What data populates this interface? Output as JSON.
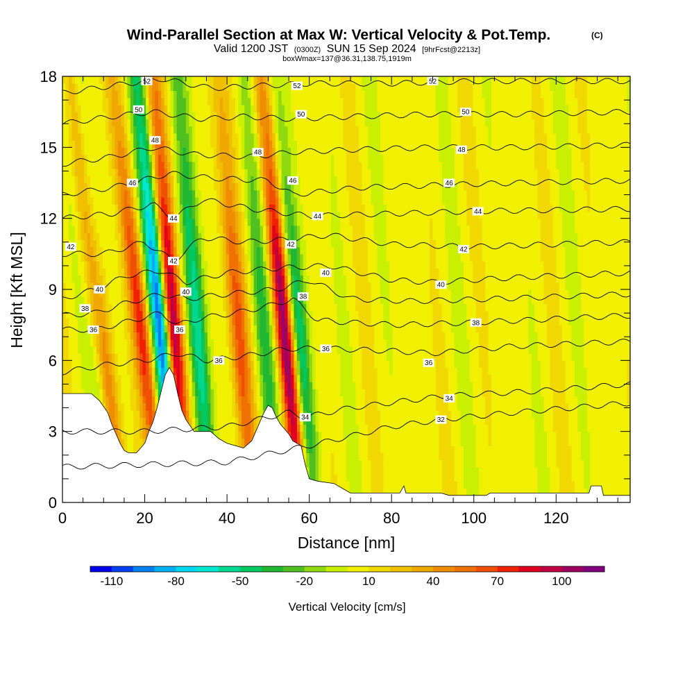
{
  "title": {
    "main": "Wind-Parallel Section at Max W: Vertical Velocity & Pot.Temp.",
    "copyright": "(C)",
    "subtitle_prefix": "Valid 1200 JST",
    "subtitle_utc": "(0300Z)",
    "subtitle_date": "SUN 15 Sep 2024",
    "subtitle_fcst": "[9hrFcst@2213z]",
    "box_info": "boxWmax=137@36.31,138.75,1919m"
  },
  "chart_data": {
    "type": "heatmap",
    "xlabel": "Distance [nm]",
    "ylabel": "Height [Kft MSL]",
    "xlim": [
      0,
      138
    ],
    "ylim": [
      0,
      18
    ],
    "xticks": [
      0,
      20,
      40,
      60,
      80,
      100,
      120
    ],
    "yticks": [
      0,
      3,
      6,
      9,
      12,
      15,
      18
    ],
    "colorbar": {
      "title": "Vertical Velocity [cm/s]",
      "tick_labels": [
        "-110",
        "-80",
        "-50",
        "-20",
        "10",
        "40",
        "70",
        "100"
      ],
      "tick_values": [
        -110,
        -80,
        -50,
        -20,
        10,
        40,
        70,
        100
      ],
      "levels": [
        -120,
        -110,
        -100,
        -90,
        -80,
        -70,
        -60,
        -50,
        -40,
        -30,
        -20,
        -10,
        0,
        10,
        20,
        30,
        40,
        50,
        60,
        70,
        80,
        90,
        100,
        110,
        120
      ],
      "colors": [
        "#0000f0",
        "#0040f0",
        "#0080f0",
        "#00b0f0",
        "#00d8f0",
        "#00e8d0",
        "#00d890",
        "#00c860",
        "#20b830",
        "#50c020",
        "#90d810",
        "#c8f000",
        "#f0f000",
        "#f0d800",
        "#f0c000",
        "#f0a800",
        "#f08c00",
        "#f07000",
        "#f05000",
        "#f02000",
        "#e00020",
        "#c00040",
        "#a00060",
        "#800080"
      ]
    },
    "background_w_range": [
      0,
      10
    ],
    "updraft_bands": [
      {
        "x_base": 14,
        "x_top": 2,
        "w_peak": 80
      },
      {
        "x_base": 24,
        "x_top": 12,
        "w_peak": 70
      },
      {
        "x_base": 30,
        "x_top": 22,
        "w_peak": 100
      },
      {
        "x_base": 46,
        "x_top": 38,
        "w_peak": 60
      },
      {
        "x_base": 58,
        "x_top": 48,
        "w_peak": 110
      }
    ],
    "downdraft_bands": [
      {
        "x_base": 12,
        "x_top": 4,
        "w_peak": -50
      },
      {
        "x_base": 28,
        "x_top": 18,
        "w_peak": -110
      },
      {
        "x_base": 36,
        "x_top": 28,
        "w_peak": -60
      },
      {
        "x_base": 52,
        "x_top": 44,
        "w_peak": -40
      },
      {
        "x_base": 61,
        "x_top": 52,
        "w_peak": -60
      }
    ],
    "terrain_kft": [
      [
        0,
        4.6
      ],
      [
        7,
        4.6
      ],
      [
        9,
        4.3
      ],
      [
        11,
        3.8
      ],
      [
        12,
        3.3
      ],
      [
        13,
        2.9
      ],
      [
        14,
        2.5
      ],
      [
        15,
        2.2
      ],
      [
        16,
        2.1
      ],
      [
        18,
        2.1
      ],
      [
        20,
        2.5
      ],
      [
        21,
        3.0
      ],
      [
        22,
        3.4
      ],
      [
        23,
        4.0
      ],
      [
        24,
        4.7
      ],
      [
        25,
        5.4
      ],
      [
        26,
        5.7
      ],
      [
        27,
        5.4
      ],
      [
        28,
        4.6
      ],
      [
        29,
        3.9
      ],
      [
        30,
        3.5
      ],
      [
        32,
        3.0
      ],
      [
        36,
        3.0
      ],
      [
        38,
        2.7
      ],
      [
        40,
        2.5
      ],
      [
        44,
        2.3
      ],
      [
        46,
        2.6
      ],
      [
        47,
        3.0
      ],
      [
        48,
        3.4
      ],
      [
        49,
        3.8
      ],
      [
        50,
        4.1
      ],
      [
        51,
        4.0
      ],
      [
        52,
        3.6
      ],
      [
        53,
        3.3
      ],
      [
        54,
        3.1
      ],
      [
        55,
        2.9
      ],
      [
        56,
        2.6
      ],
      [
        58,
        2.4
      ],
      [
        59,
        1.6
      ],
      [
        60,
        1.0
      ],
      [
        62,
        0.9
      ],
      [
        66,
        0.8
      ],
      [
        68,
        0.6
      ],
      [
        70,
        0.4
      ],
      [
        82,
        0.4
      ],
      [
        83,
        0.7
      ],
      [
        83.5,
        0.4
      ],
      [
        92,
        0.4
      ],
      [
        94,
        0.3
      ],
      [
        103,
        0.3
      ],
      [
        104,
        0.4
      ],
      [
        128,
        0.4
      ],
      [
        128.5,
        0.7
      ],
      [
        131,
        0.7
      ],
      [
        131.5,
        0.3
      ],
      [
        138,
        0.3
      ]
    ],
    "isentropes": [
      {
        "theta": 32,
        "label": "32",
        "pts": [
          [
            0,
            1.5
          ],
          [
            40,
            1.7
          ],
          [
            60,
            2.4
          ],
          [
            80,
            3.2
          ],
          [
            92,
            3.5
          ],
          [
            110,
            3.8
          ],
          [
            138,
            4.2
          ]
        ]
      },
      {
        "theta": 34,
        "label": "34",
        "pts": [
          [
            0,
            3.0
          ],
          [
            20,
            3.0
          ],
          [
            40,
            3.2
          ],
          [
            55,
            3.8
          ],
          [
            59,
            3.6
          ],
          [
            70,
            4.0
          ],
          [
            93,
            4.5
          ],
          [
            115,
            4.7
          ],
          [
            138,
            5.0
          ]
        ]
      },
      {
        "theta": 36,
        "label": "36",
        "pts": [
          [
            0,
            5.5
          ],
          [
            10,
            5.8
          ],
          [
            20,
            6.0
          ],
          [
            28,
            6.3
          ],
          [
            35,
            6.0
          ],
          [
            45,
            6.2
          ],
          [
            55,
            6.5
          ],
          [
            65,
            6.5
          ],
          [
            80,
            6.4
          ],
          [
            90,
            6.3
          ],
          [
            110,
            6.6
          ],
          [
            138,
            6.8
          ]
        ]
      },
      {
        "theta": 38,
        "label": "38",
        "pts": [
          [
            0,
            7.3
          ],
          [
            8,
            7.3
          ],
          [
            15,
            7.6
          ],
          [
            24,
            8.0
          ],
          [
            28,
            7.5
          ],
          [
            34,
            7.8
          ],
          [
            42,
            8.0
          ],
          [
            50,
            8.3
          ],
          [
            56,
            8.6
          ],
          [
            62,
            7.7
          ],
          [
            70,
            7.6
          ],
          [
            82,
            7.5
          ],
          [
            100,
            7.6
          ],
          [
            138,
            7.9
          ]
        ]
      },
      {
        "theta": 38.5,
        "label": "38",
        "pts": [
          [
            0,
            7.9
          ],
          [
            8,
            8.0
          ],
          [
            15,
            8.4
          ],
          [
            24,
            8.8
          ],
          [
            30,
            8.6
          ],
          [
            40,
            8.8
          ],
          [
            52,
            9.0
          ],
          [
            60,
            9.4
          ],
          [
            70,
            8.6
          ],
          [
            85,
            8.5
          ],
          [
            105,
            8.6
          ],
          [
            138,
            8.8
          ]
        ]
      },
      {
        "theta": 40,
        "label": "40",
        "pts": [
          [
            0,
            8.6
          ],
          [
            8,
            9.0
          ],
          [
            16,
            9.6
          ],
          [
            24,
            9.8
          ],
          [
            30,
            9.3
          ],
          [
            40,
            9.7
          ],
          [
            52,
            9.9
          ],
          [
            65,
            10.0
          ],
          [
            80,
            9.4
          ],
          [
            90,
            9.3
          ],
          [
            110,
            9.5
          ],
          [
            138,
            9.7
          ]
        ]
      },
      {
        "theta": 42,
        "label": "42",
        "pts": [
          [
            0,
            10.5
          ],
          [
            10,
            10.5
          ],
          [
            20,
            11.0
          ],
          [
            27,
            10.2
          ],
          [
            34,
            11.2
          ],
          [
            44,
            11.0
          ],
          [
            54,
            11.1
          ],
          [
            65,
            11.3
          ],
          [
            80,
            10.9
          ],
          [
            100,
            10.8
          ],
          [
            138,
            11.0
          ]
        ]
      },
      {
        "theta": 44,
        "label": "44",
        "pts": [
          [
            0,
            12.0
          ],
          [
            12,
            12.2
          ],
          [
            22,
            12.6
          ],
          [
            27,
            12.0
          ],
          [
            34,
            12.8
          ],
          [
            46,
            12.4
          ],
          [
            60,
            12.1
          ],
          [
            80,
            12.2
          ],
          [
            100,
            12.3
          ],
          [
            138,
            12.4
          ]
        ]
      },
      {
        "theta": 46,
        "label": "46",
        "pts": [
          [
            0,
            13.0
          ],
          [
            12,
            13.3
          ],
          [
            17,
            13.5
          ],
          [
            26,
            13.9
          ],
          [
            36,
            13.7
          ],
          [
            50,
            13.6
          ],
          [
            56,
            13.0
          ],
          [
            72,
            13.3
          ],
          [
            90,
            13.4
          ],
          [
            110,
            13.5
          ],
          [
            138,
            13.6
          ]
        ]
      },
      {
        "theta": 48,
        "label": "48",
        "pts": [
          [
            0,
            14.3
          ],
          [
            12,
            14.6
          ],
          [
            22,
            15.0
          ],
          [
            32,
            14.7
          ],
          [
            46,
            14.6
          ],
          [
            56,
            14.8
          ],
          [
            70,
            14.9
          ],
          [
            90,
            15.0
          ],
          [
            110,
            15.0
          ],
          [
            138,
            15.1
          ]
        ]
      },
      {
        "theta": 50,
        "label": "50",
        "pts": [
          [
            0,
            16.0
          ],
          [
            12,
            16.3
          ],
          [
            22,
            16.5
          ],
          [
            34,
            16.2
          ],
          [
            44,
            16.3
          ],
          [
            56,
            16.2
          ],
          [
            70,
            16.3
          ],
          [
            90,
            16.4
          ],
          [
            110,
            16.4
          ],
          [
            138,
            16.5
          ]
        ]
      },
      {
        "theta": 52,
        "label": "52",
        "pts": [
          [
            0,
            17.3
          ],
          [
            12,
            17.6
          ],
          [
            24,
            17.9
          ],
          [
            36,
            17.5
          ],
          [
            48,
            17.6
          ],
          [
            60,
            17.7
          ],
          [
            80,
            17.7
          ],
          [
            100,
            17.8
          ],
          [
            138,
            17.8
          ]
        ]
      }
    ],
    "contour_labels": [
      {
        "text": "52",
        "x": 20.5,
        "y": 17.8
      },
      {
        "text": "52",
        "x": 57,
        "y": 17.6
      },
      {
        "text": "52",
        "x": 90,
        "y": 17.8
      },
      {
        "text": "50",
        "x": 18.5,
        "y": 16.6
      },
      {
        "text": "50",
        "x": 58,
        "y": 16.4
      },
      {
        "text": "50",
        "x": 98,
        "y": 16.5
      },
      {
        "text": "48",
        "x": 22.5,
        "y": 15.3
      },
      {
        "text": "48",
        "x": 47.5,
        "y": 14.8
      },
      {
        "text": "48",
        "x": 97,
        "y": 14.9
      },
      {
        "text": "46",
        "x": 17,
        "y": 13.5
      },
      {
        "text": "46",
        "x": 56,
        "y": 13.6
      },
      {
        "text": "46",
        "x": 94,
        "y": 13.5
      },
      {
        "text": "44",
        "x": 27,
        "y": 12.0
      },
      {
        "text": "44",
        "x": 62,
        "y": 12.1
      },
      {
        "text": "44",
        "x": 101,
        "y": 12.3
      },
      {
        "text": "42",
        "x": 2,
        "y": 10.8
      },
      {
        "text": "42",
        "x": 27,
        "y": 10.2
      },
      {
        "text": "42",
        "x": 55.5,
        "y": 10.9
      },
      {
        "text": "42",
        "x": 97.5,
        "y": 10.7
      },
      {
        "text": "40",
        "x": 9,
        "y": 9.0
      },
      {
        "text": "40",
        "x": 30,
        "y": 8.9
      },
      {
        "text": "40",
        "x": 64,
        "y": 9.7
      },
      {
        "text": "40",
        "x": 92,
        "y": 9.2
      },
      {
        "text": "38",
        "x": 5.5,
        "y": 8.2
      },
      {
        "text": "38",
        "x": 58.5,
        "y": 8.7
      },
      {
        "text": "38",
        "x": 100.5,
        "y": 7.6
      },
      {
        "text": "36",
        "x": 7.5,
        "y": 7.3
      },
      {
        "text": "36",
        "x": 28.5,
        "y": 7.3
      },
      {
        "text": "36",
        "x": 38,
        "y": 6.0
      },
      {
        "text": "36",
        "x": 64,
        "y": 6.5
      },
      {
        "text": "36",
        "x": 89,
        "y": 5.9
      },
      {
        "text": "34",
        "x": 59,
        "y": 3.6
      },
      {
        "text": "34",
        "x": 94,
        "y": 4.4
      },
      {
        "text": "32",
        "x": 92,
        "y": 3.5
      }
    ]
  }
}
